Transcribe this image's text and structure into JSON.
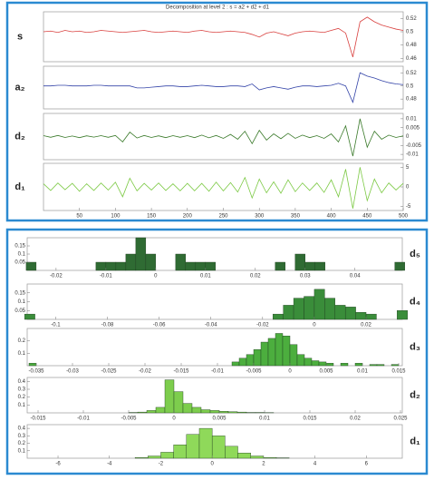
{
  "chart_data": [
    {
      "type": "line",
      "title": "Decomposition at level 2 : s = a2 + d2 + d1",
      "x": [
        0,
        10,
        20,
        30,
        40,
        50,
        60,
        70,
        80,
        90,
        100,
        110,
        120,
        130,
        140,
        150,
        160,
        170,
        180,
        190,
        200,
        210,
        220,
        230,
        240,
        250,
        260,
        270,
        280,
        290,
        300,
        310,
        320,
        330,
        340,
        350,
        360,
        370,
        380,
        390,
        400,
        410,
        420,
        430,
        440,
        450,
        460,
        470,
        480,
        490,
        500
      ],
      "xlim": [
        0,
        500
      ],
      "xticks": [
        50,
        100,
        150,
        200,
        250,
        300,
        350,
        400,
        450,
        500
      ],
      "series": [
        {
          "name": "s",
          "color": "#d9413f",
          "ylim": [
            0.455,
            0.53
          ],
          "yticks": [
            0.52,
            0.5,
            0.48,
            0.46
          ],
          "values": [
            0.5,
            0.501,
            0.499,
            0.502,
            0.5,
            0.501,
            0.499,
            0.5,
            0.502,
            0.501,
            0.5,
            0.499,
            0.5,
            0.501,
            0.502,
            0.5,
            0.499,
            0.5,
            0.501,
            0.5,
            0.499,
            0.501,
            0.502,
            0.5,
            0.499,
            0.5,
            0.501,
            0.5,
            0.499,
            0.496,
            0.492,
            0.498,
            0.5,
            0.497,
            0.494,
            0.498,
            0.5,
            0.501,
            0.5,
            0.499,
            0.502,
            0.505,
            0.498,
            0.462,
            0.515,
            0.522,
            0.515,
            0.51,
            0.507,
            0.504,
            0.502
          ]
        },
        {
          "name": "a₂",
          "color": "#3444a8",
          "ylim": [
            0.465,
            0.53
          ],
          "yticks": [
            0.52,
            0.5,
            0.48
          ],
          "values": [
            0.5,
            0.5,
            0.501,
            0.501,
            0.5,
            0.5,
            0.5,
            0.501,
            0.501,
            0.5,
            0.5,
            0.5,
            0.5,
            0.497,
            0.497,
            0.498,
            0.499,
            0.5,
            0.5,
            0.499,
            0.499,
            0.5,
            0.501,
            0.5,
            0.499,
            0.499,
            0.5,
            0.5,
            0.499,
            0.503,
            0.494,
            0.497,
            0.499,
            0.497,
            0.495,
            0.498,
            0.5,
            0.5,
            0.499,
            0.5,
            0.501,
            0.504,
            0.5,
            0.475,
            0.52,
            0.515,
            0.512,
            0.508,
            0.505,
            0.503,
            0.502
          ]
        },
        {
          "name": "d₂",
          "color": "#3a7a2a",
          "ylim": [
            -0.013,
            0.013
          ],
          "yticks": [
            0.01,
            0.005,
            0,
            -0.005,
            -0.01
          ],
          "values": [
            0.0005,
            -0.0004,
            0.0006,
            -0.0005,
            0.0003,
            -0.0006,
            0.0004,
            -0.0003,
            0.0005,
            -0.0004,
            0.0006,
            -0.003,
            0.0025,
            -0.0008,
            0.0006,
            -0.0005,
            0.0004,
            -0.0006,
            0.0005,
            -0.0004,
            0.0005,
            -0.0006,
            0.0008,
            -0.0007,
            0.0006,
            -0.001,
            0.0012,
            -0.0015,
            0.003,
            -0.004,
            0.0035,
            -0.002,
            0.0015,
            -0.0012,
            0.0018,
            -0.001,
            0.0008,
            -0.0006,
            0.0005,
            -0.001,
            0.0015,
            -0.003,
            0.006,
            -0.011,
            0.01,
            -0.006,
            0.003,
            -0.0015,
            0.0008,
            -0.0005,
            0.0004
          ]
        },
        {
          "name": "d₁",
          "color": "#7cc944",
          "ylim": [
            -6,
            6
          ],
          "yticks": [
            5,
            0,
            -5
          ],
          "values": [
            0.8,
            -0.9,
            1.0,
            -0.7,
            0.9,
            -1.1,
            0.8,
            -0.9,
            1.0,
            -0.8,
            1.2,
            -2.5,
            2.2,
            -1.0,
            0.9,
            -0.8,
            1.0,
            -0.9,
            0.8,
            -1.0,
            0.9,
            -1.0,
            0.9,
            -1.1,
            1.2,
            -1.0,
            1.1,
            -1.3,
            2.4,
            -2.8,
            2.0,
            -1.5,
            1.3,
            -1.6,
            1.8,
            -1.2,
            1.0,
            -0.9,
            1.0,
            -1.4,
            1.8,
            -2.5,
            4.5,
            -5.5,
            5.0,
            -3.5,
            2.0,
            -1.5,
            1.0,
            -0.8,
            0.9
          ]
        }
      ]
    },
    {
      "type": "histogram",
      "label": "d₅",
      "color": "#2f6b33",
      "bins": [
        -0.026,
        -0.024,
        -0.022,
        -0.02,
        -0.018,
        -0.016,
        -0.014,
        -0.012,
        -0.01,
        -0.008,
        -0.006,
        -0.004,
        -0.002,
        0,
        0.002,
        0.004,
        0.006,
        0.008,
        0.01,
        0.012,
        0.014,
        0.016,
        0.018,
        0.02,
        0.022,
        0.024,
        0.026,
        0.028,
        0.03,
        0.032,
        0.034,
        0.036,
        0.038,
        0.04,
        0.042,
        0.044,
        0.046,
        0.048,
        0.05
      ],
      "values": [
        0.05,
        0,
        0,
        0,
        0,
        0,
        0,
        0.05,
        0.05,
        0.05,
        0.1,
        0.2,
        0.1,
        0,
        0,
        0.1,
        0.05,
        0.05,
        0.05,
        0,
        0,
        0,
        0,
        0,
        0,
        0.05,
        0,
        0.1,
        0.05,
        0.05,
        0,
        0,
        0,
        0,
        0,
        0,
        0,
        0.05
      ],
      "xlim": [
        -0.0258,
        0.0495
      ],
      "xticks": [
        -0.02,
        -0.01,
        0,
        0.01,
        0.02,
        0.03,
        0.04
      ],
      "ylim": [
        0,
        0.2
      ],
      "yticks": [
        0.05,
        0.1,
        0.15
      ]
    },
    {
      "type": "histogram",
      "label": "d₄",
      "color": "#3a8d3a",
      "bins": [
        -0.112,
        -0.108,
        -0.104,
        -0.1,
        -0.096,
        -0.092,
        -0.088,
        -0.084,
        -0.08,
        -0.076,
        -0.072,
        -0.068,
        -0.064,
        -0.06,
        -0.056,
        -0.052,
        -0.048,
        -0.044,
        -0.04,
        -0.036,
        -0.032,
        -0.028,
        -0.024,
        -0.02,
        -0.016,
        -0.012,
        -0.008,
        -0.004,
        0,
        0.004,
        0.008,
        0.012,
        0.016,
        0.02,
        0.024,
        0.028,
        0.032,
        0.036
      ],
      "values": [
        0.03,
        0,
        0,
        0,
        0,
        0,
        0,
        0,
        0,
        0,
        0,
        0,
        0,
        0,
        0,
        0,
        0,
        0,
        0,
        0,
        0,
        0,
        0,
        0,
        0.03,
        0.08,
        0.12,
        0.13,
        0.17,
        0.12,
        0.08,
        0.07,
        0.04,
        0.03,
        0,
        0,
        0.05
      ],
      "xlim": [
        -0.111,
        0.034
      ],
      "xticks": [
        -0.1,
        -0.08,
        -0.06,
        -0.04,
        -0.02,
        0,
        0.02
      ],
      "ylim": [
        0,
        0.2
      ],
      "yticks": [
        0.05,
        0.1,
        0.15
      ]
    },
    {
      "type": "histogram",
      "label": "d₃",
      "color": "#4cae3e",
      "bins": [
        -0.036,
        -0.035,
        -0.034,
        -0.033,
        -0.032,
        -0.031,
        -0.03,
        -0.029,
        -0.028,
        -0.027,
        -0.026,
        -0.025,
        -0.024,
        -0.023,
        -0.022,
        -0.021,
        -0.02,
        -0.019,
        -0.018,
        -0.017,
        -0.016,
        -0.015,
        -0.014,
        -0.013,
        -0.012,
        -0.011,
        -0.01,
        -0.009,
        -0.008,
        -0.007,
        -0.006,
        -0.005,
        -0.004,
        -0.003,
        -0.002,
        -0.001,
        0,
        0.001,
        0.002,
        0.003,
        0.004,
        0.005,
        0.006,
        0.007,
        0.008,
        0.009,
        0.01,
        0.011,
        0.012,
        0.013,
        0.014,
        0.015,
        0.016
      ],
      "values": [
        0.02,
        0,
        0,
        0,
        0,
        0,
        0,
        0,
        0,
        0,
        0,
        0,
        0,
        0,
        0,
        0,
        0,
        0,
        0,
        0,
        0,
        0,
        0,
        0,
        0,
        0,
        0,
        0,
        0.03,
        0.06,
        0.09,
        0.13,
        0.19,
        0.22,
        0.26,
        0.24,
        0.17,
        0.09,
        0.06,
        0.04,
        0.03,
        0.02,
        0,
        0.02,
        0,
        0.02,
        0,
        0.01,
        0.01,
        0,
        0.01,
        0
      ],
      "xlim": [
        -0.03625,
        0.0155
      ],
      "xticks": [
        -0.035,
        -0.03,
        -0.025,
        -0.02,
        -0.015,
        -0.01,
        -0.005,
        0,
        0.005,
        0.01,
        0.015
      ],
      "ylim": [
        0,
        0.3
      ],
      "yticks": [
        0.1,
        0.2
      ]
    },
    {
      "type": "histogram",
      "label": "d₂",
      "color": "#7dcd4d",
      "bins": [
        -0.005,
        -0.004,
        -0.003,
        -0.002,
        -0.001,
        0,
        0.001,
        0.002,
        0.003,
        0.004,
        0.005,
        0.006,
        0.007,
        0.008,
        0.009,
        0.01,
        0.011
      ],
      "values": [
        0.005,
        0.01,
        0.03,
        0.07,
        0.42,
        0.27,
        0.12,
        0.07,
        0.04,
        0.03,
        0.02,
        0.015,
        0.01,
        0.005,
        0.005,
        0.003
      ],
      "xlim": [
        -0.0162,
        0.0252
      ],
      "xticks": [
        -0.015,
        -0.01,
        -0.005,
        0,
        0.005,
        0.01,
        0.015,
        0.02,
        0.025
      ],
      "ylim": [
        0,
        0.45
      ],
      "yticks": [
        0.1,
        0.2,
        0.3,
        0.4
      ]
    },
    {
      "type": "histogram",
      "label": "d₁",
      "color": "#8fd95a",
      "bins": [
        -3,
        -2.5,
        -2,
        -1.5,
        -1,
        -0.5,
        0,
        0.5,
        1,
        1.5,
        2,
        2.5,
        3
      ],
      "values": [
        0.01,
        0.03,
        0.08,
        0.18,
        0.32,
        0.4,
        0.3,
        0.16,
        0.07,
        0.03,
        0.01,
        0.005
      ],
      "xlim": [
        -7.2,
        7.4
      ],
      "xticks": [
        -6,
        -4,
        -2,
        0,
        2,
        4,
        6
      ],
      "ylim": [
        0,
        0.45
      ],
      "yticks": [
        0.1,
        0.2,
        0.3,
        0.4
      ]
    }
  ]
}
